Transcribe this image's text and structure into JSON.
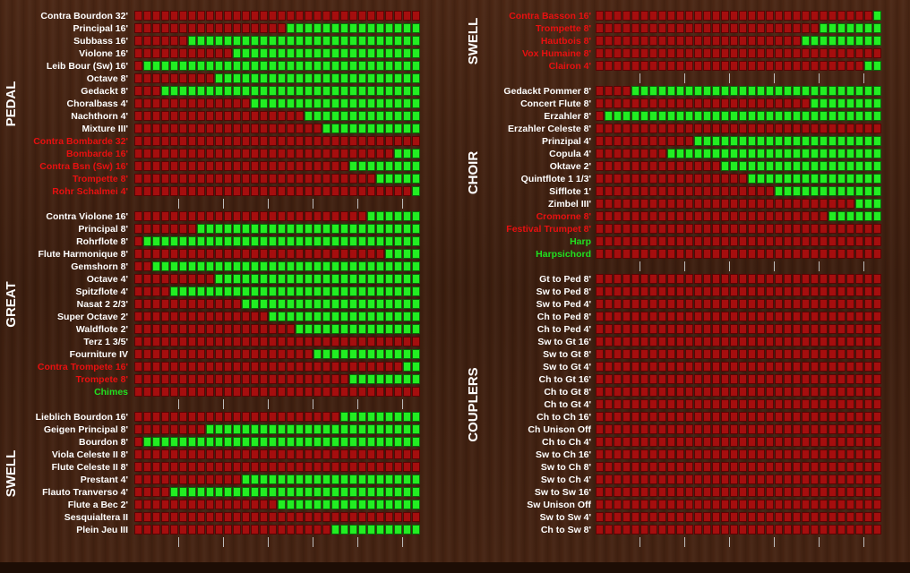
{
  "colors": {
    "on": "#22ee22",
    "off": "#a50e0e",
    "label": "#ffffff",
    "reed_label": "#e81010",
    "perc_label": "#20e020"
  },
  "cells_per_row": 32,
  "left_column": [
    {
      "division": "PEDAL",
      "stops": [
        {
          "name": "Contra Bourdon 32'",
          "style": "white",
          "on_from": null
        },
        {
          "name": "Principal 16'",
          "style": "white",
          "on_from": 17
        },
        {
          "name": "Subbass 16'",
          "style": "white",
          "on_from": 6
        },
        {
          "name": "Violone 16'",
          "style": "white",
          "on_from": 11
        },
        {
          "name": "Leib Bour (Sw) 16'",
          "style": "white",
          "on_from": 1
        },
        {
          "name": "Octave 8'",
          "style": "white",
          "on_from": 9
        },
        {
          "name": "Gedackt 8'",
          "style": "white",
          "on_from": 3
        },
        {
          "name": "Choralbass 4'",
          "style": "white",
          "on_from": 13
        },
        {
          "name": "Nachthorn 4'",
          "style": "white",
          "on_from": 19
        },
        {
          "name": "Mixture III'",
          "style": "white",
          "on_from": 21
        },
        {
          "name": "Contra Bombarde 32'",
          "style": "red",
          "on_from": null
        },
        {
          "name": "Bombarde 16'",
          "style": "red",
          "on_from": 29
        },
        {
          "name": "Contra Bsn (Sw) 16'",
          "style": "red",
          "on_from": 24
        },
        {
          "name": "Trompette 8'",
          "style": "red",
          "on_from": 27
        },
        {
          "name": "Rohr Schalmei 4'",
          "style": "red",
          "on_from": 31
        }
      ]
    },
    {
      "division": "GREAT",
      "stops": [
        {
          "name": "Contra Violone 16'",
          "style": "white",
          "on_from": 26
        },
        {
          "name": "Principal 8'",
          "style": "white",
          "on_from": 7
        },
        {
          "name": "Rohrflote 8'",
          "style": "white",
          "on_from": 1
        },
        {
          "name": "Flute Harmonique 8'",
          "style": "white",
          "on_from": 28
        },
        {
          "name": "Gemshorn 8'",
          "style": "white",
          "on_from": 2
        },
        {
          "name": "Octave 4'",
          "style": "white",
          "on_from": 9
        },
        {
          "name": "Spitzflote 4'",
          "style": "white",
          "on_from": 4
        },
        {
          "name": "Nasat 2 2/3'",
          "style": "white",
          "on_from": 12
        },
        {
          "name": "Super Octave 2'",
          "style": "white",
          "on_from": 15
        },
        {
          "name": "Waldflote 2'",
          "style": "white",
          "on_from": 18
        },
        {
          "name": "Terz 1 3/5'",
          "style": "white",
          "on_from": null
        },
        {
          "name": "Fourniture IV",
          "style": "white",
          "on_from": 20
        },
        {
          "name": "Contra Trompete 16'",
          "style": "red",
          "on_from": 30
        },
        {
          "name": "Trompete 8'",
          "style": "red",
          "on_from": 24
        },
        {
          "name": "Chimes",
          "style": "green",
          "on_from": null
        }
      ]
    },
    {
      "division": "SWELL",
      "stops": [
        {
          "name": "Lieblich Bourdon 16'",
          "style": "white",
          "on_from": 23
        },
        {
          "name": "Geigen Principal 8'",
          "style": "white",
          "on_from": 8
        },
        {
          "name": "Bourdon 8'",
          "style": "white",
          "on_from": 1
        },
        {
          "name": "Viola Celeste II 8'",
          "style": "white",
          "on_from": null
        },
        {
          "name": "Flute Celeste II 8'",
          "style": "white",
          "on_from": null
        },
        {
          "name": "Prestant 4'",
          "style": "white",
          "on_from": 12
        },
        {
          "name": "Flauto Tranverso 4'",
          "style": "white",
          "on_from": 4
        },
        {
          "name": "Flute a Bec 2'",
          "style": "white",
          "on_from": 16
        },
        {
          "name": "Sesquialtera II",
          "style": "white",
          "on_from": null
        },
        {
          "name": "Plein Jeu III",
          "style": "white",
          "on_from": 22
        }
      ]
    }
  ],
  "right_column": [
    {
      "division": "SWELL",
      "stops": [
        {
          "name": "Contra Basson 16'",
          "style": "red",
          "on_from": 31
        },
        {
          "name": "Trompette 8'",
          "style": "red",
          "on_from": 25
        },
        {
          "name": "Hautbois 8'",
          "style": "red",
          "on_from": 23
        },
        {
          "name": "Vox Humaine 8'",
          "style": "red",
          "on_from": null
        },
        {
          "name": "Clairon 4'",
          "style": "red",
          "on_from": 30
        }
      ]
    },
    {
      "division": "CHOIR",
      "stops": [
        {
          "name": "Gedackt Pommer 8'",
          "style": "white",
          "on_from": 4
        },
        {
          "name": "Concert Flute 8'",
          "style": "white",
          "on_from": 24
        },
        {
          "name": "Erzahler 8'",
          "style": "white",
          "on_from": 1
        },
        {
          "name": "Erzahler Celeste 8'",
          "style": "white",
          "on_from": null
        },
        {
          "name": "Prinzipal 4'",
          "style": "white",
          "on_from": 11
        },
        {
          "name": "Copula 4'",
          "style": "white",
          "on_from": 8
        },
        {
          "name": "Oktave 2'",
          "style": "white",
          "on_from": 14
        },
        {
          "name": "Quintflote 1 1/3'",
          "style": "white",
          "on_from": 17
        },
        {
          "name": "Sifflote 1'",
          "style": "white",
          "on_from": 20
        },
        {
          "name": "Zimbel III'",
          "style": "white",
          "on_from": 29
        },
        {
          "name": "Cromorne 8'",
          "style": "red",
          "on_from": 26
        },
        {
          "name": "Festival Trumpet 8'",
          "style": "red",
          "on_from": null
        },
        {
          "name": "Harp",
          "style": "green",
          "on_from": null
        },
        {
          "name": "Harpsichord",
          "style": "green",
          "on_from": null
        }
      ]
    },
    {
      "division": "COUPLERS",
      "stops": [
        {
          "name": "Gt to Ped 8'",
          "style": "white",
          "on_from": null
        },
        {
          "name": "Sw to Ped 8'",
          "style": "white",
          "on_from": null
        },
        {
          "name": "Sw to Ped 4'",
          "style": "white",
          "on_from": null
        },
        {
          "name": "Ch to Ped 8'",
          "style": "white",
          "on_from": null
        },
        {
          "name": "Ch to Ped 4'",
          "style": "white",
          "on_from": null
        },
        {
          "name": "Sw to Gt 16'",
          "style": "white",
          "on_from": null
        },
        {
          "name": "Sw to Gt 8'",
          "style": "white",
          "on_from": null
        },
        {
          "name": "Sw to Gt 4'",
          "style": "white",
          "on_from": null
        },
        {
          "name": "Ch to Gt 16'",
          "style": "white",
          "on_from": null
        },
        {
          "name": "Ch to Gt 8'",
          "style": "white",
          "on_from": null
        },
        {
          "name": "Ch to Gt 4'",
          "style": "white",
          "on_from": null
        },
        {
          "name": "Ch to Ch 16'",
          "style": "white",
          "on_from": null
        },
        {
          "name": "Ch Unison Off",
          "style": "white",
          "on_from": null
        },
        {
          "name": "Ch to Ch 4'",
          "style": "white",
          "on_from": null
        },
        {
          "name": "Sw to Ch 16'",
          "style": "white",
          "on_from": null
        },
        {
          "name": "Sw to Ch 8'",
          "style": "white",
          "on_from": null
        },
        {
          "name": "Sw to Ch 4'",
          "style": "white",
          "on_from": null
        },
        {
          "name": "Sw to Sw 16'",
          "style": "white",
          "on_from": null
        },
        {
          "name": "Sw Unison Off",
          "style": "white",
          "on_from": null
        },
        {
          "name": "Sw to Sw 4'",
          "style": "white",
          "on_from": null
        },
        {
          "name": "Ch to Sw 8'",
          "style": "white",
          "on_from": null
        }
      ]
    }
  ]
}
